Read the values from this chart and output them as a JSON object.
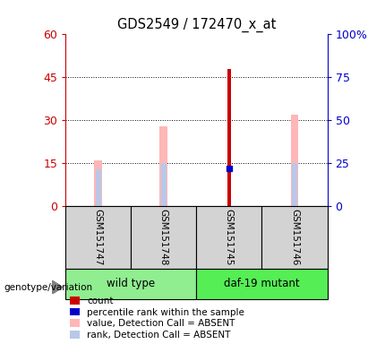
{
  "title": "GDS2549 / 172470_x_at",
  "samples": [
    "GSM151747",
    "GSM151748",
    "GSM151745",
    "GSM151746"
  ],
  "ylim_left": [
    0,
    60
  ],
  "ylim_right": [
    0,
    100
  ],
  "yticks_left": [
    0,
    15,
    30,
    45,
    60
  ],
  "ytick_labels_left": [
    "0",
    "15",
    "30",
    "45",
    "60"
  ],
  "yticks_right": [
    0,
    25,
    50,
    75,
    100
  ],
  "ytick_labels_right": [
    "0",
    "25",
    "50",
    "75",
    "100%"
  ],
  "count_values": [
    0,
    0,
    48,
    0
  ],
  "percentile_rank_values": [
    0,
    0,
    22,
    0
  ],
  "value_absent_values": [
    16,
    28,
    0,
    32
  ],
  "rank_absent_values": [
    13,
    15,
    0,
    15
  ],
  "colors": {
    "count": "#cc0000",
    "percentile_rank": "#0000cc",
    "value_absent": "#ffb6b6",
    "rank_absent": "#b8c8e8",
    "left_axis": "#cc0000",
    "right_axis": "#0000cc",
    "sample_bg": "#d3d3d3",
    "wt_bg": "#90ee90",
    "mut_bg": "#55ee55"
  },
  "value_bar_width": 0.12,
  "rank_bar_width": 0.08,
  "count_bar_width": 0.05,
  "legend": [
    {
      "label": "count",
      "color": "#cc0000"
    },
    {
      "label": "percentile rank within the sample",
      "color": "#0000cc"
    },
    {
      "label": "value, Detection Call = ABSENT",
      "color": "#ffb6b6"
    },
    {
      "label": "rank, Detection Call = ABSENT",
      "color": "#b8c8e8"
    }
  ]
}
